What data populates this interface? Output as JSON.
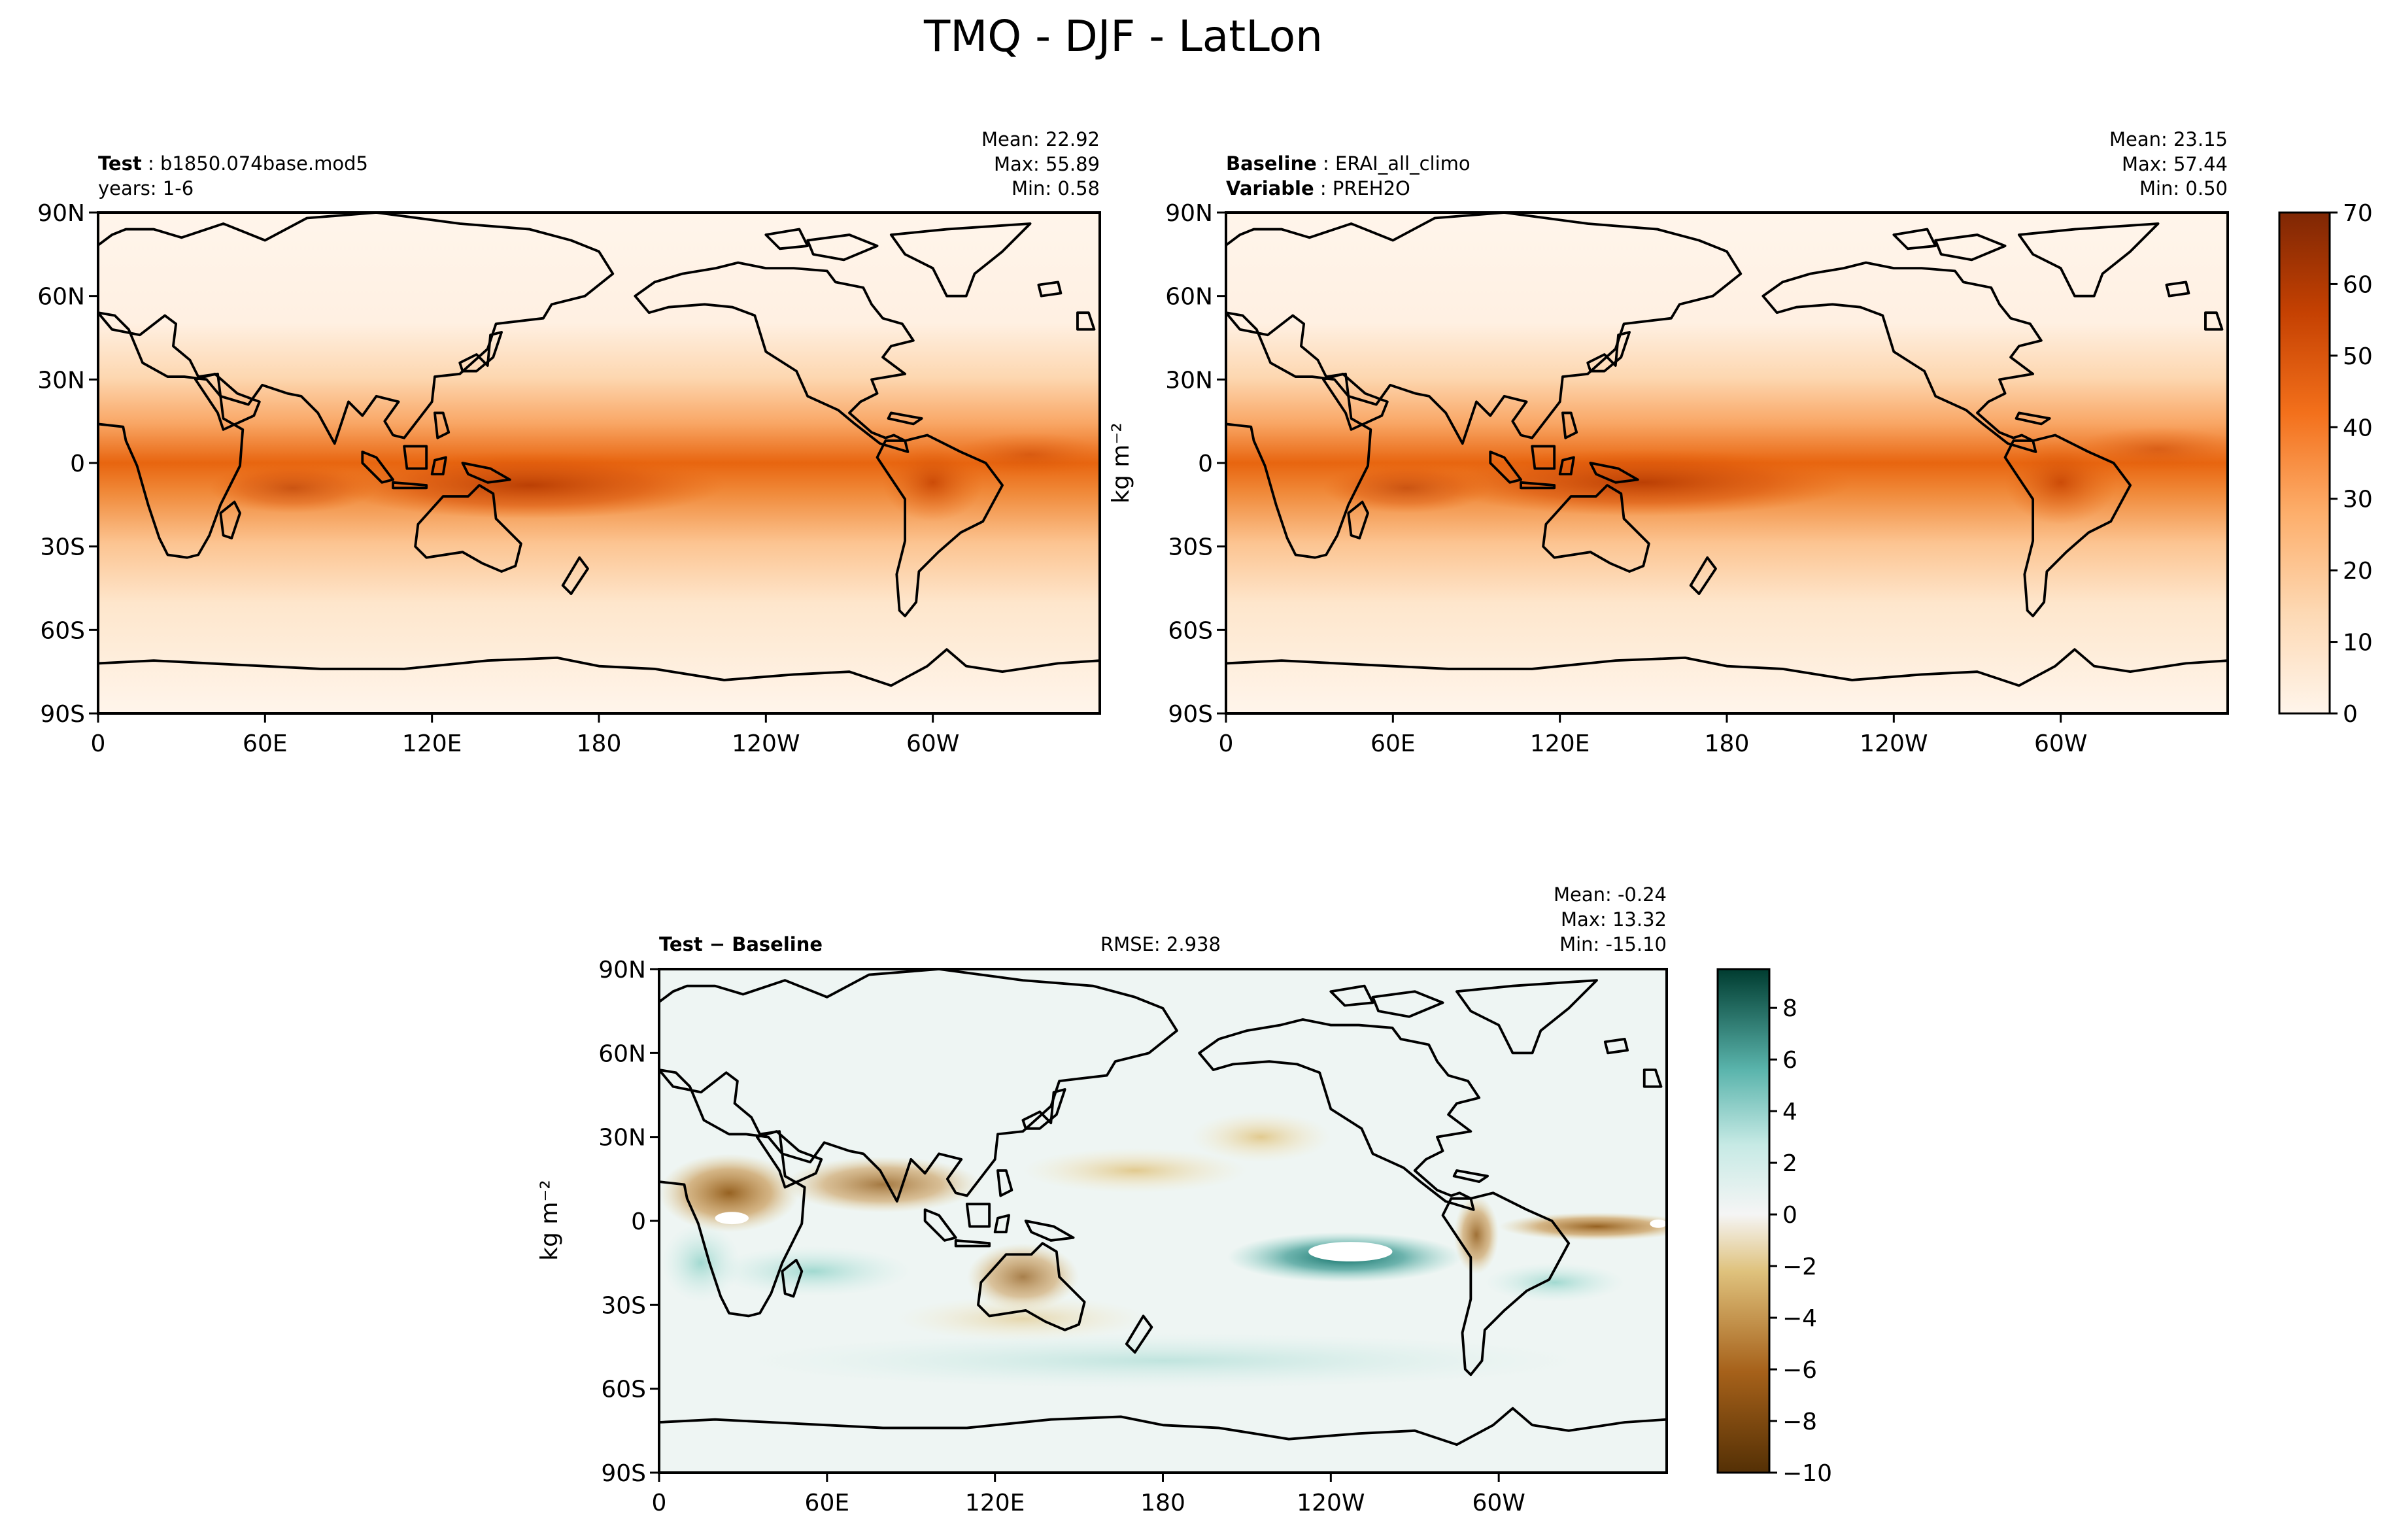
{
  "figure": {
    "title": "TMQ - DJF - LatLon",
    "colors": {
      "land_outline": "#000000",
      "seq_low": "#fff5eb",
      "seq_high": "#7f2704",
      "div_neg": "#543005",
      "div_mid": "#f5f5f5",
      "div_pos": "#003c30"
    }
  },
  "chart_data": [
    {
      "type": "heatmap",
      "name": "test",
      "title_bold": "Test",
      "title_value": "b1850.074base.mod5",
      "subtitle": "years: 1-6",
      "stats": [
        "Mean: 22.92",
        "Max: 55.89",
        "Min:  0.58"
      ],
      "xticks": [
        "0",
        "60E",
        "120E",
        "180",
        "120W",
        "60W"
      ],
      "yticks": [
        "90N",
        "60N",
        "30N",
        "0",
        "30S",
        "60S",
        "90S"
      ],
      "xlim": [
        0,
        360
      ],
      "ylim": [
        -90,
        90
      ],
      "field_range": [
        0,
        70
      ],
      "field_description": "Precipitable water, maximum in tropical band (~50-55) over western Pacific / Maritime Continent, decreasing poleward to ~0-5 near poles"
    },
    {
      "type": "heatmap",
      "name": "baseline",
      "title_bold": "Baseline",
      "title_value": "ERAI_all_climo",
      "subtitle_bold": "Variable",
      "subtitle_value": "PREH2O",
      "stats": [
        "Mean: 23.15",
        "Max: 57.44",
        "Min:  0.50"
      ],
      "ylabel": "kg m⁻²",
      "xticks": [
        "0",
        "60E",
        "120E",
        "180",
        "120W",
        "60W"
      ],
      "yticks": [
        "90N",
        "60N",
        "30N",
        "0",
        "30S",
        "60S",
        "90S"
      ],
      "xlim": [
        0,
        360
      ],
      "ylim": [
        -90,
        90
      ],
      "colorbar_ticks": [
        "0",
        "10",
        "20",
        "30",
        "40",
        "50",
        "60",
        "70"
      ],
      "colorbar_range": [
        0,
        70
      ]
    },
    {
      "type": "heatmap",
      "name": "difference",
      "title_bold": "Test − Baseline",
      "rmse": "RMSE: 2.938",
      "stats": [
        "Mean: -0.24",
        "Max: 13.32",
        "Min: -15.10"
      ],
      "ylabel": "kg m⁻²",
      "xticks": [
        "0",
        "60E",
        "120E",
        "180",
        "120W",
        "60W"
      ],
      "yticks": [
        "90N",
        "60N",
        "30N",
        "0",
        "30S",
        "60S",
        "90S"
      ],
      "xlim": [
        0,
        360
      ],
      "ylim": [
        -90,
        90
      ],
      "colorbar_ticks": [
        "8",
        "6",
        "4",
        "2",
        "0",
        "−2",
        "−4",
        "−6",
        "−8",
        "−10"
      ],
      "colorbar_range": [
        -10,
        9.5
      ]
    }
  ]
}
